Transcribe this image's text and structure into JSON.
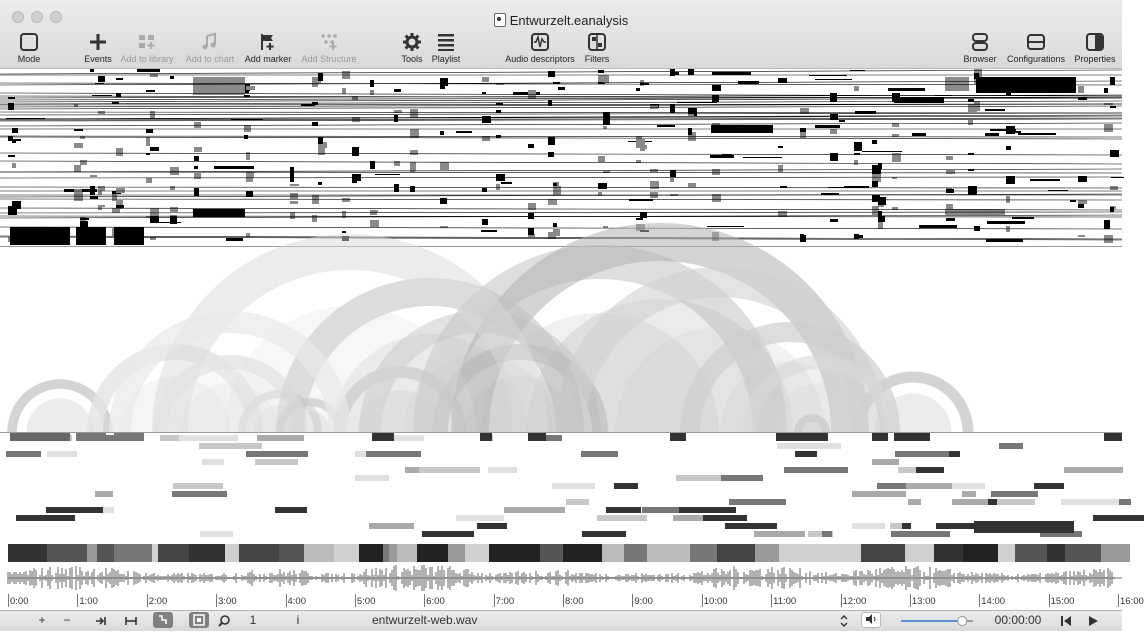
{
  "window": {
    "title": "Entwurzelt.eanalysis"
  },
  "toolbar": {
    "mode": "Mode",
    "events": "Events",
    "add_to_library": "Add to library",
    "add_to_chart": "Add to chart",
    "add_marker": "Add marker",
    "add_structure": "Add Structure",
    "tools": "Tools",
    "playlist": "Playlist",
    "audio_descriptors": "Audio descriptors",
    "filters": "Filters",
    "browser": "Browser",
    "configurations": "Configurations",
    "properties": "Properties"
  },
  "time_axis": {
    "ticks": [
      "0:00",
      "1:00",
      "2:00",
      "3:00",
      "4:00",
      "5:00",
      "6:00",
      "7:00",
      "8:00",
      "9:00",
      "10:00",
      "11:00",
      "12:00",
      "13:00",
      "14:00",
      "15:00",
      "16:00"
    ]
  },
  "bottom_bar": {
    "plus": "+",
    "minus": "−",
    "page_number": "1",
    "info": "i",
    "file_name": "entwurzelt-web.wav",
    "time_code": "00:00:00",
    "volume_level": 0.85
  }
}
